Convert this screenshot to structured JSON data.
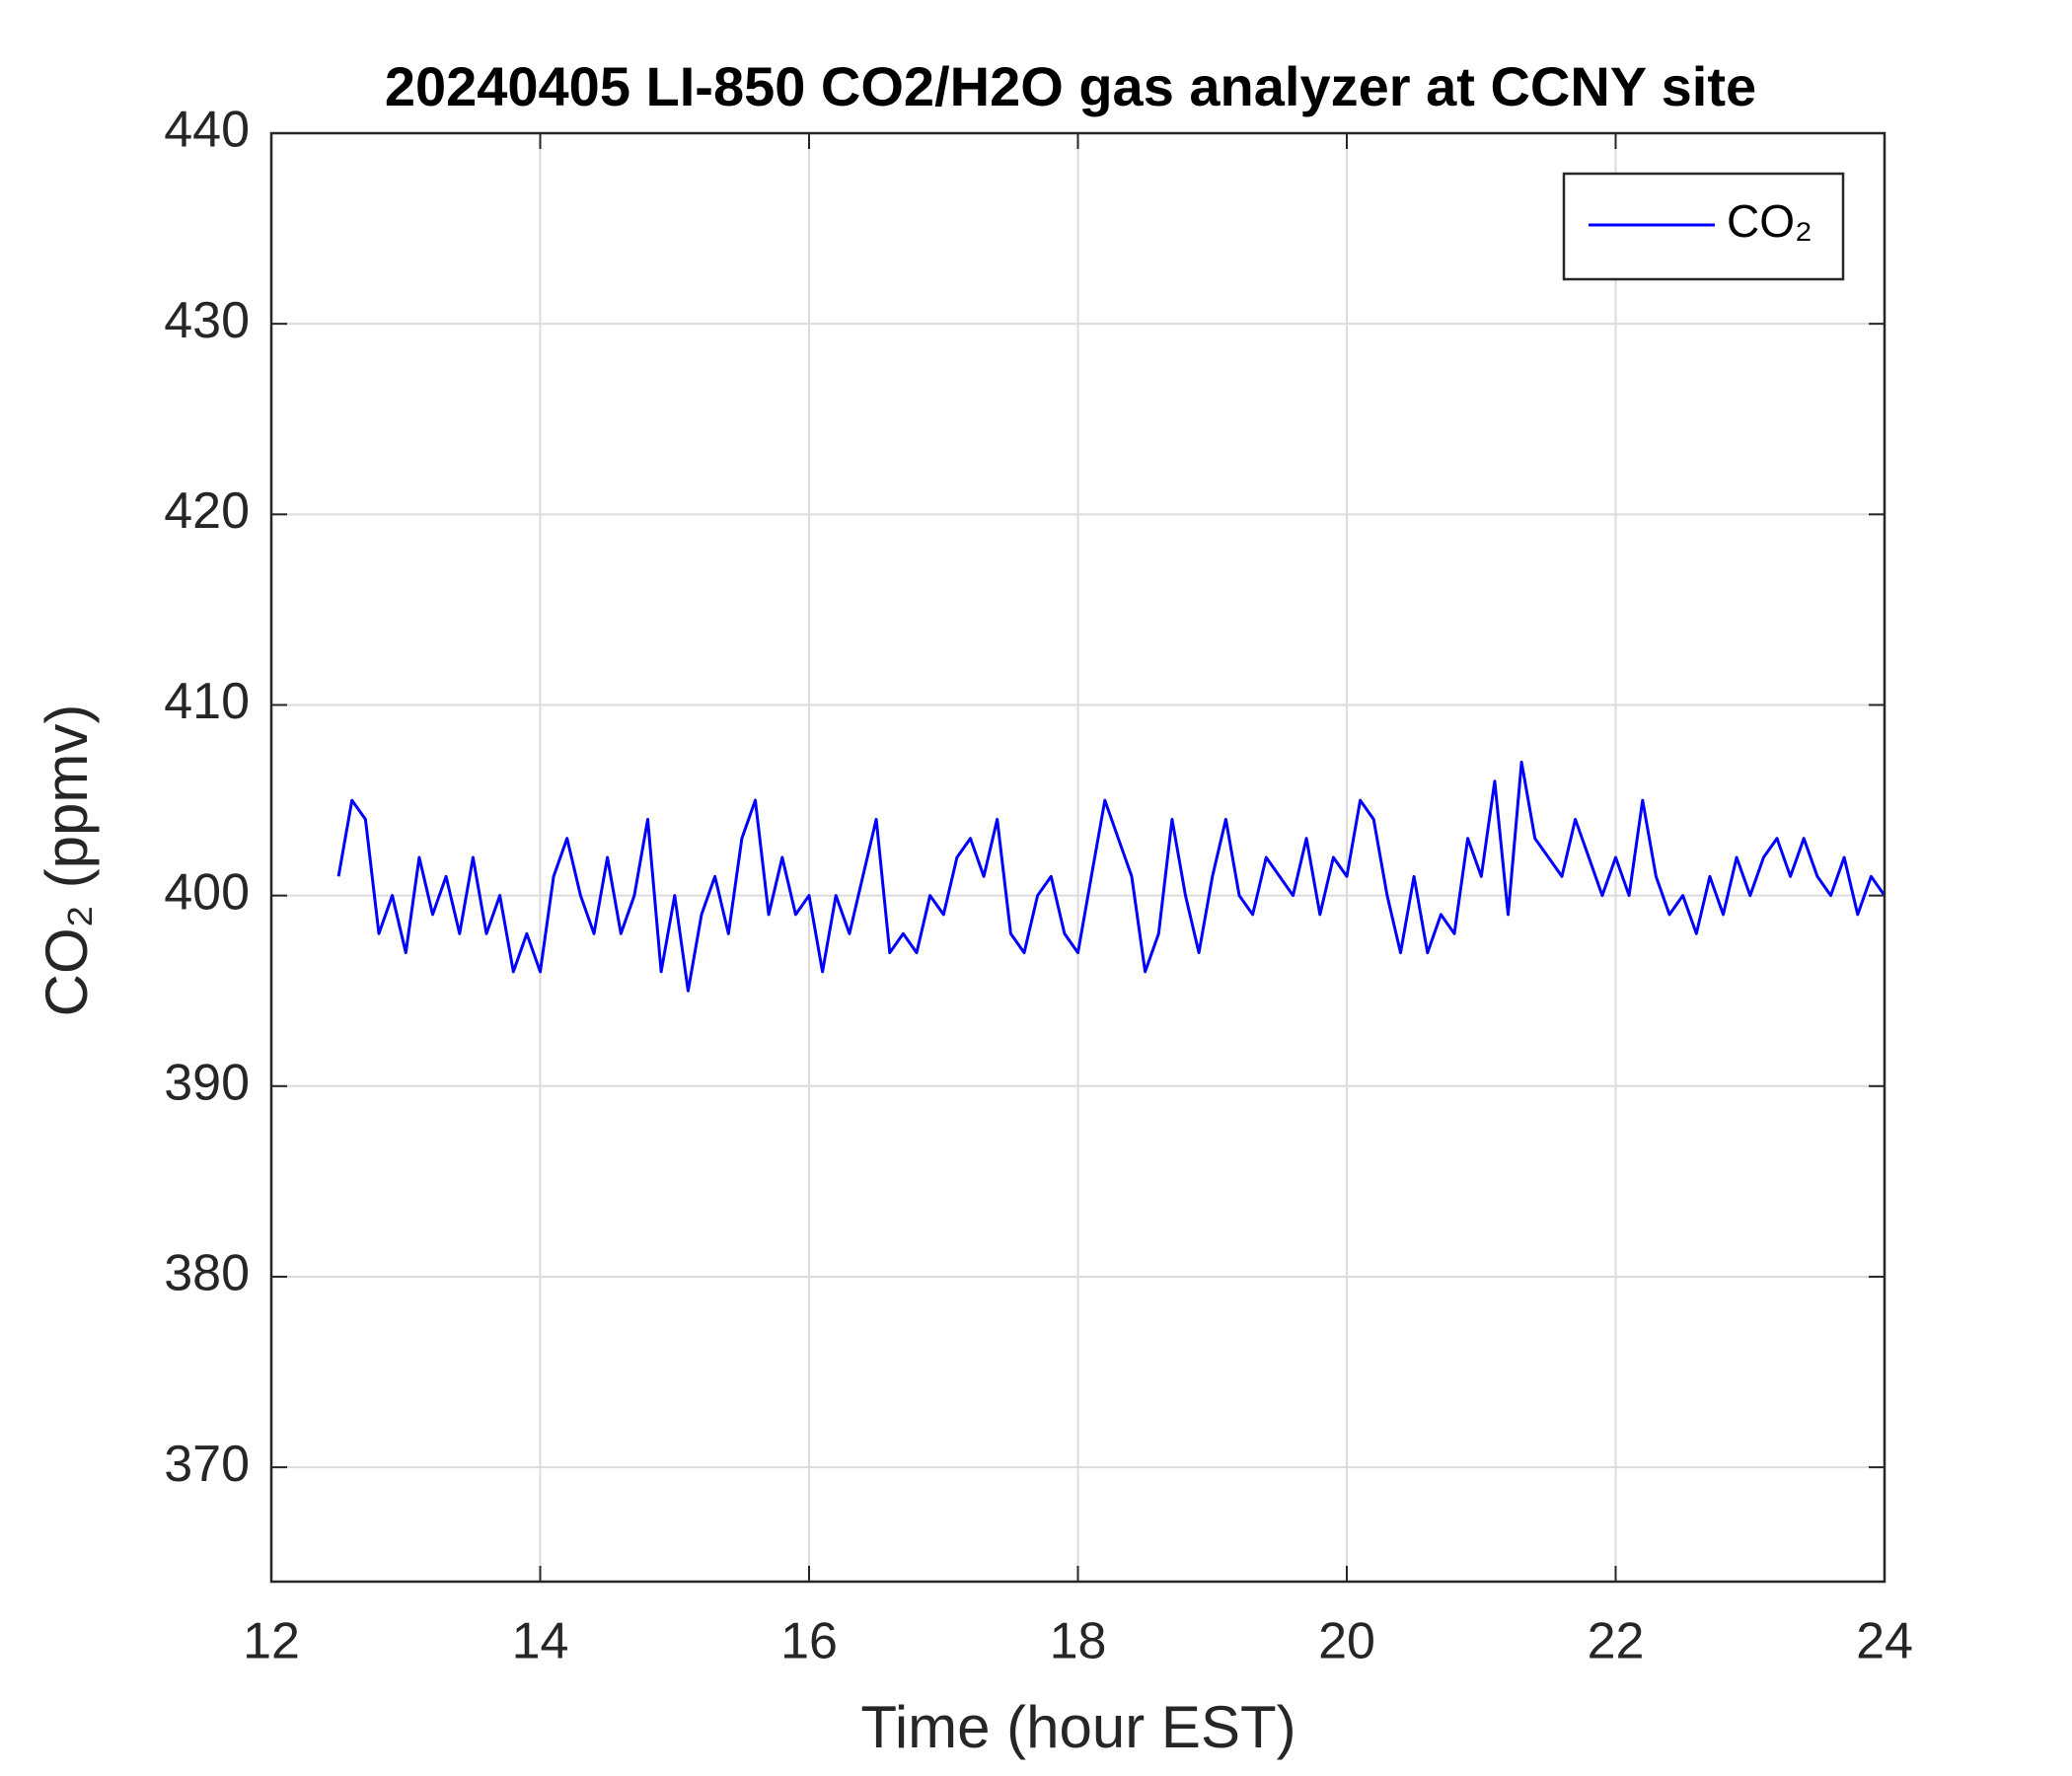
{
  "chart_data": {
    "type": "line",
    "title": "20240405 LI-850 CO2/H2O gas analyzer at CCNY site",
    "x_label": "Time (hour EST)",
    "y_label": "CO₂ (ppmv)",
    "x": [
      12.5,
      12.6,
      12.7,
      12.8,
      12.9,
      13.0,
      13.1,
      13.2,
      13.3,
      13.4,
      13.5,
      13.6,
      13.7,
      13.8,
      13.9,
      14.0,
      14.1,
      14.2,
      14.3,
      14.4,
      14.5,
      14.6,
      14.7,
      14.8,
      14.9,
      15.0,
      15.1,
      15.2,
      15.3,
      15.4,
      15.5,
      15.6,
      15.7,
      15.8,
      15.9,
      16.0,
      16.1,
      16.2,
      16.3,
      16.4,
      16.5,
      16.6,
      16.7,
      16.8,
      16.9,
      17.0,
      17.1,
      17.2,
      17.3,
      17.4,
      17.5,
      17.6,
      17.7,
      17.8,
      17.9,
      18.0,
      18.1,
      18.2,
      18.3,
      18.4,
      18.5,
      18.6,
      18.7,
      18.8,
      18.9,
      19.0,
      19.1,
      19.2,
      19.3,
      19.4,
      19.5,
      19.6,
      19.7,
      19.8,
      19.9,
      20.0,
      20.1,
      20.2,
      20.3,
      20.4,
      20.5,
      20.6,
      20.7,
      20.8,
      20.9,
      21.0,
      21.1,
      21.2,
      21.3,
      21.4,
      21.5,
      21.6,
      21.7,
      21.8,
      21.9,
      22.0,
      22.1,
      22.2,
      22.3,
      22.4,
      22.5,
      22.6,
      22.7,
      22.8,
      22.9,
      23.0,
      23.1,
      23.2,
      23.3,
      23.4,
      23.5,
      23.6,
      23.7,
      23.8,
      23.9,
      24.0
    ],
    "series": [
      {
        "name": "CO₂",
        "color": "#0000ff",
        "values": [
          401,
          405,
          404,
          398,
          400,
          397,
          402,
          399,
          401,
          398,
          402,
          398,
          400,
          396,
          398,
          396,
          401,
          403,
          400,
          398,
          402,
          398,
          400,
          404,
          396,
          400,
          395,
          399,
          401,
          398,
          403,
          405,
          399,
          402,
          399,
          400,
          396,
          400,
          398,
          401,
          404,
          397,
          398,
          397,
          400,
          399,
          402,
          403,
          401,
          404,
          398,
          397,
          400,
          401,
          398,
          397,
          401,
          405,
          403,
          401,
          396,
          398,
          404,
          400,
          397,
          401,
          404,
          400,
          399,
          402,
          401,
          400,
          403,
          399,
          402,
          401,
          405,
          404,
          400,
          397,
          401,
          397,
          399,
          398,
          403,
          401,
          406,
          399,
          407,
          403,
          402,
          401,
          404,
          402,
          400,
          402,
          400,
          405,
          401,
          399,
          400,
          398,
          401,
          399,
          402,
          400,
          402,
          403,
          401,
          403,
          401,
          400,
          402,
          399,
          401,
          400
        ]
      }
    ],
    "xlim": [
      12,
      24
    ],
    "xticks": [
      12,
      14,
      16,
      18,
      20,
      22,
      24
    ],
    "ylim": [
      364,
      440
    ],
    "yticks": [
      370,
      380,
      390,
      400,
      410,
      420,
      430,
      440
    ],
    "grid": true,
    "legend": "upper right"
  }
}
